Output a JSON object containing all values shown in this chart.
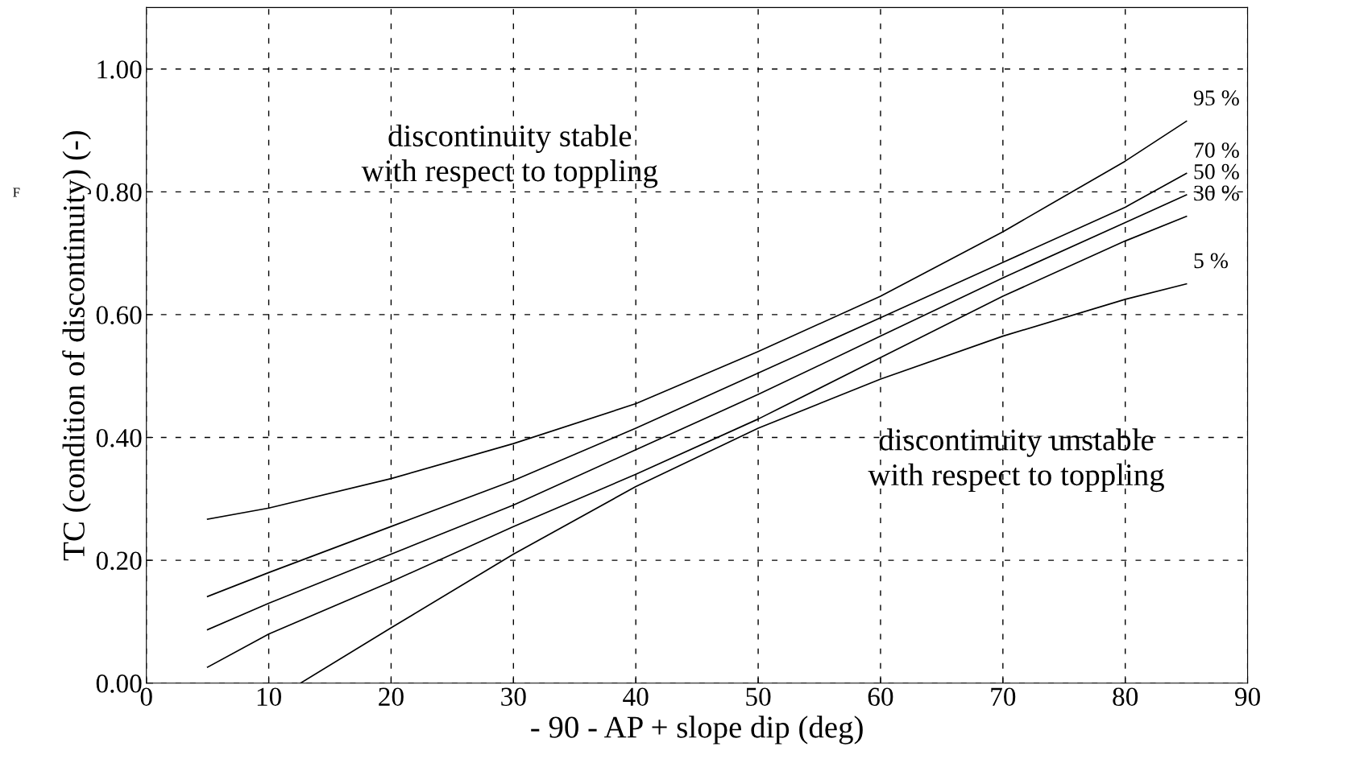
{
  "chart_data": {
    "type": "line",
    "xlabel": "- 90 - AP + slope dip (deg)",
    "ylabel": "TC (condition of discontinuity) (-)",
    "xlim": [
      0,
      90
    ],
    "xticks": [
      0,
      10,
      20,
      30,
      40,
      50,
      60,
      70,
      80,
      90
    ],
    "ylim": [
      0,
      1.1
    ],
    "yticks": [
      {
        "value": 0,
        "label": "0.00"
      },
      {
        "value": 0.2,
        "label": "0.20"
      },
      {
        "value": 0.4,
        "label": "0.40"
      },
      {
        "value": 0.6,
        "label": "0.60"
      },
      {
        "value": 0.8,
        "label": "0.80"
      },
      {
        "value": 1.0,
        "label": "1.00"
      }
    ],
    "grid": true,
    "line_style": "solid",
    "marker": "none",
    "legend": false,
    "x": [
      5,
      10,
      20,
      30,
      40,
      50,
      60,
      70,
      80,
      85
    ],
    "series": [
      {
        "name": "95 %",
        "color": "#000000",
        "values": [
          0.267,
          0.285,
          0.333,
          0.39,
          0.455,
          0.54,
          0.63,
          0.735,
          0.85,
          0.915
        ]
      },
      {
        "name": "70 %",
        "color": "#000000",
        "values": [
          0.141,
          0.18,
          0.255,
          0.33,
          0.415,
          0.505,
          0.595,
          0.685,
          0.775,
          0.83
        ]
      },
      {
        "name": "50 %",
        "color": "#000000",
        "values": [
          0.087,
          0.13,
          0.21,
          0.29,
          0.38,
          0.47,
          0.565,
          0.66,
          0.75,
          0.795
        ]
      },
      {
        "name": "30 %",
        "color": "#000000",
        "values": [
          0.026,
          0.08,
          0.165,
          0.255,
          0.34,
          0.43,
          0.53,
          0.63,
          0.72,
          0.76
        ]
      },
      {
        "name": "5 %",
        "color": "#000000",
        "x": [
          12.6,
          20,
          30,
          40,
          50,
          60,
          70,
          80,
          85
        ],
        "values": [
          0,
          0.09,
          0.21,
          0.32,
          0.415,
          0.495,
          0.565,
          0.625,
          0.65
        ]
      }
    ],
    "annotations": [
      "discontinuity stable\nwith respect to toppling",
      "discontinuity unstable\nwith respect to toppling",
      "F"
    ]
  }
}
